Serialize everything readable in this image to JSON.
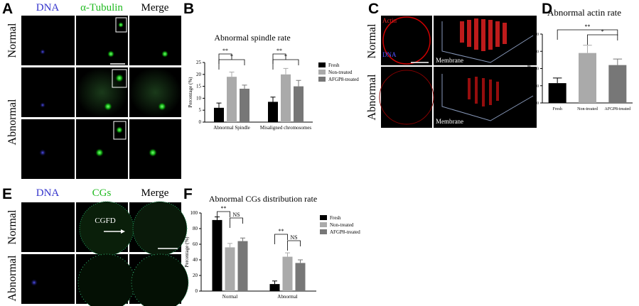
{
  "panel_labels": [
    "A",
    "B",
    "C",
    "D",
    "E",
    "F"
  ],
  "panel_a": {
    "columns": [
      "DNA",
      "α-Tubulin",
      "Merge"
    ],
    "rows": [
      "Normal",
      "Abnormal"
    ]
  },
  "panel_c": {
    "rows": [
      "Normal",
      "Abnormal"
    ],
    "labels": [
      "Actin",
      "DNA",
      "Membrane",
      "Membrane"
    ]
  },
  "panel_e": {
    "columns": [
      "DNA",
      "CGs",
      "Merge"
    ],
    "rows": [
      "Normal",
      "Abnormal"
    ],
    "annotation": "CGFD"
  },
  "chart_data": [
    {
      "type": "bar",
      "title": "Abnormal spindle rate",
      "ylabel": "Percentage (%)",
      "categories": [
        "Abnormal Spindle",
        "Misaligned chromosomes"
      ],
      "series": [
        {
          "name": "Fresh",
          "color": "#000000",
          "values": [
            6,
            8.5
          ],
          "errors": [
            2,
            2
          ]
        },
        {
          "name": "Non-treated",
          "color": "#aaaaaa",
          "values": [
            19,
            20
          ],
          "errors": [
            2,
            2.5
          ]
        },
        {
          "name": "AFGP8-treated",
          "color": "#777777",
          "values": [
            14,
            15
          ],
          "errors": [
            1.5,
            2.5
          ]
        }
      ],
      "ylim": [
        0,
        25
      ],
      "yticks": [
        0,
        5,
        10,
        15,
        20,
        25
      ],
      "annotations": [
        "**",
        "*",
        "**",
        "*"
      ]
    },
    {
      "type": "bar",
      "title": "Abnormal actin rate",
      "ylabel": "Percentage (%)",
      "categories": [
        "Fresh",
        "Non-treated",
        "AFGP8-treated"
      ],
      "values": [
        11.5,
        29,
        22
      ],
      "errors": [
        3,
        4.5,
        3.5
      ],
      "colors": [
        "#000000",
        "#aaaaaa",
        "#777777"
      ],
      "ylim": [
        0,
        40
      ],
      "yticks": [
        0,
        10,
        20,
        30,
        40
      ],
      "annotations": [
        "**",
        "*"
      ]
    },
    {
      "type": "bar",
      "title": "Abnormal CGs distribution rate",
      "ylabel": "Percentage (%)",
      "categories": [
        "Normal",
        "Abnormal"
      ],
      "series": [
        {
          "name": "Fresh",
          "color": "#000000",
          "values": [
            91,
            9
          ],
          "errors": [
            4,
            4
          ]
        },
        {
          "name": "Non-treated",
          "color": "#aaaaaa",
          "values": [
            56,
            44
          ],
          "errors": [
            5,
            5
          ]
        },
        {
          "name": "AFGP8-treated",
          "color": "#777777",
          "values": [
            64,
            36
          ],
          "errors": [
            4,
            4
          ]
        }
      ],
      "ylim": [
        0,
        100
      ],
      "yticks": [
        0,
        20,
        40,
        60,
        80,
        100
      ],
      "annotations": [
        "**",
        "NS",
        "**",
        "NS"
      ]
    }
  ]
}
